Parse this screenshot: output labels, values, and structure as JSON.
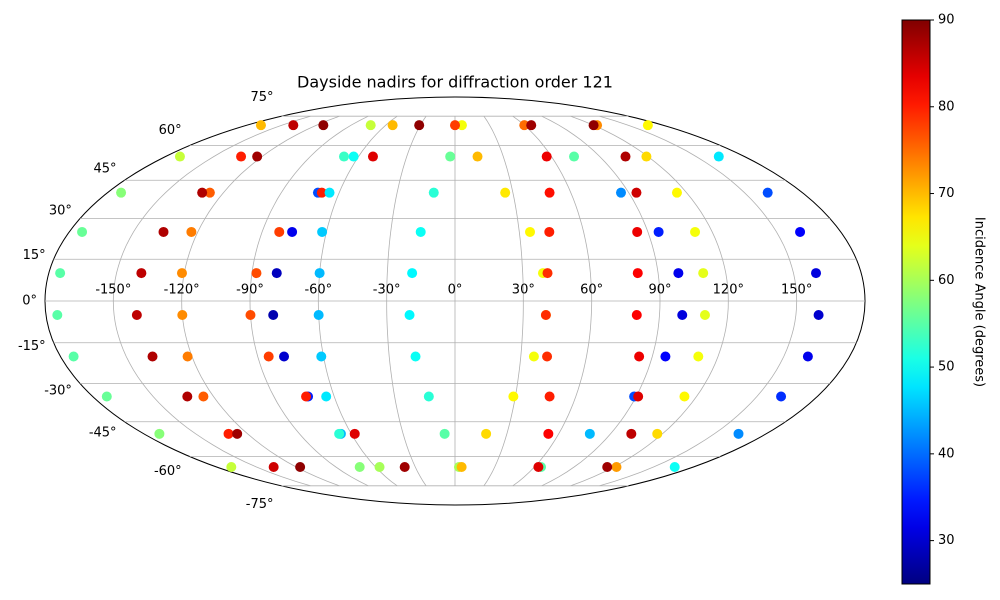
{
  "chart_data": {
    "type": "mollweide-scatter",
    "title": "Dayside nadirs for diffraction order 121",
    "colorbar_label": "Incidence Angle (degrees)",
    "colormap": "jet",
    "clim": [
      25,
      90
    ],
    "cticks": [
      30,
      40,
      50,
      60,
      70,
      80,
      90
    ],
    "grid": true,
    "xlim": [
      -180,
      180
    ],
    "ylim": [
      -90,
      90
    ],
    "xticks": [
      {
        "value": -150,
        "label": "-150°"
      },
      {
        "value": -120,
        "label": "-120°"
      },
      {
        "value": -90,
        "label": "-90°"
      },
      {
        "value": -60,
        "label": "-60°"
      },
      {
        "value": -30,
        "label": "-30°"
      },
      {
        "value": 0,
        "label": "0°"
      },
      {
        "value": 30,
        "label": "30°"
      },
      {
        "value": 60,
        "label": "60°"
      },
      {
        "value": 90,
        "label": "90°"
      },
      {
        "value": 120,
        "label": "120°"
      },
      {
        "value": 150,
        "label": "150°"
      }
    ],
    "yticks": [
      {
        "value": -75,
        "label": "-75°"
      },
      {
        "value": -60,
        "label": "-60°"
      },
      {
        "value": -45,
        "label": "-45°"
      },
      {
        "value": -30,
        "label": "-30°"
      },
      {
        "value": -15,
        "label": "-15°"
      },
      {
        "value": 0,
        "label": "0°"
      },
      {
        "value": 15,
        "label": "15°"
      },
      {
        "value": 30,
        "label": "30°"
      },
      {
        "value": 45,
        "label": "45°"
      },
      {
        "value": 60,
        "label": "60°"
      },
      {
        "value": 75,
        "label": "75°"
      }
    ],
    "series": [
      {
        "x": [
          -57,
          -66,
          -73,
          -78,
          -80,
          -79,
          -76,
          -71,
          -63,
          -54
        ],
        "y": [
          -65,
          -50,
          -35,
          -20,
          -5,
          10,
          25,
          40,
          55,
          70
        ],
        "values": [
          60,
          45,
          35,
          30,
          28,
          29,
          32,
          38,
          50,
          70
        ]
      },
      {
        "x": [
          65,
          78,
          89,
          96,
          100,
          99,
          95,
          86,
          74,
          60
        ],
        "y": [
          -65,
          -50,
          -35,
          -20,
          -5,
          10,
          25,
          40,
          55,
          70
        ],
        "values": [
          55,
          45,
          38,
          33,
          31,
          32,
          35,
          42,
          55,
          75
        ]
      },
      {
        "x": [
          -137,
          -131,
          -125,
          -122,
          -120,
          -121,
          -123,
          -127,
          -133,
          -140
        ],
        "y": [
          -65,
          -50,
          -35,
          -20,
          -5,
          10,
          25,
          40,
          55,
          70
        ],
        "values": [
          85,
          80,
          76,
          74,
          73,
          73,
          74,
          76,
          80,
          86
        ]
      },
      {
        "x": [
          -38,
          -58,
          -74,
          -85,
          -90,
          -88,
          -82,
          -69,
          -51,
          -31
        ],
        "y": [
          -65,
          -50,
          -35,
          -20,
          -5,
          10,
          25,
          40,
          55,
          70
        ],
        "values": [
          88,
          84,
          80,
          78,
          77,
          77,
          78,
          80,
          84,
          89
        ]
      },
      {
        "x": [
          166,
          164,
          162,
          161,
          160,
          160,
          161,
          162,
          164,
          167
        ],
        "y": [
          -65,
          -50,
          -35,
          -20,
          -5,
          10,
          25,
          40,
          55,
          70
        ],
        "values": [
          50,
          42,
          36,
          32,
          30,
          31,
          33,
          38,
          48,
          66
        ]
      },
      {
        "x": [
          -117,
          -126,
          -133,
          -138,
          -140,
          -139,
          -136,
          -131,
          -123,
          -114
        ],
        "y": [
          -65,
          -50,
          -35,
          -20,
          -5,
          10,
          25,
          40,
          55,
          70
        ],
        "values": [
          89,
          88,
          87,
          87,
          86,
          86,
          87,
          87,
          88,
          89
        ]
      },
      {
        "x": [
          3,
          -6,
          -13,
          -18,
          -20,
          -19,
          -16,
          -11,
          -3,
          6
        ],
        "y": [
          -65,
          -50,
          -35,
          -20,
          -5,
          10,
          25,
          40,
          55,
          70
        ],
        "values": [
          60,
          55,
          52,
          50,
          49,
          49,
          50,
          52,
          56,
          65
        ]
      },
      {
        "x": [
          122,
          117,
          114,
          111,
          110,
          110,
          112,
          115,
          119,
          123
        ],
        "y": [
          -65,
          -50,
          -35,
          -20,
          -5,
          10,
          25,
          40,
          55,
          70
        ],
        "values": [
          72,
          68,
          66,
          65,
          64,
          64,
          65,
          66,
          68,
          73
        ]
      },
      {
        "x": [
          5,
          18,
          29,
          36,
          40,
          39,
          35,
          26,
          14,
          0
        ],
        "y": [
          -65,
          -50,
          -35,
          -20,
          -5,
          10,
          25,
          40,
          55,
          70
        ],
        "values": [
          70,
          68,
          66,
          65,
          65,
          65,
          66,
          67,
          70,
          78
        ]
      },
      {
        "x": [
          63,
          54,
          47,
          42,
          40,
          41,
          44,
          49,
          57,
          66
        ],
        "y": [
          -65,
          -50,
          -35,
          -20,
          -5,
          10,
          25,
          40,
          55,
          70
        ],
        "values": [
          84,
          82,
          80,
          79,
          79,
          79,
          80,
          81,
          83,
          88
        ]
      },
      {
        "x": [
          -169,
          -171,
          -173,
          -174,
          -175,
          -175,
          -174,
          -173,
          -171,
          -168
        ],
        "y": [
          -65,
          -50,
          -35,
          -20,
          -5,
          10,
          25,
          40,
          55,
          70
        ],
        "values": [
          62,
          58,
          56,
          55,
          55,
          55,
          56,
          58,
          62,
          70
        ]
      },
      {
        "x": [
          -72,
          -67,
          -64,
          -61,
          -60,
          -60,
          -62,
          -65,
          -69,
          -73
        ],
        "y": [
          -65,
          -50,
          -35,
          -20,
          -5,
          10,
          25,
          40,
          55,
          70
        ],
        "values": [
          58,
          52,
          48,
          46,
          45,
          45,
          46,
          48,
          53,
          62
        ]
      },
      {
        "x": [
          115,
          102,
          91,
          84,
          80,
          81,
          85,
          94,
          106,
          120
        ],
        "y": [
          -65,
          -50,
          -35,
          -20,
          -5,
          10,
          25,
          40,
          55,
          70
        ],
        "values": [
          88,
          86,
          84,
          83,
          82,
          82,
          83,
          85,
          87,
          89
        ]
      }
    ]
  }
}
